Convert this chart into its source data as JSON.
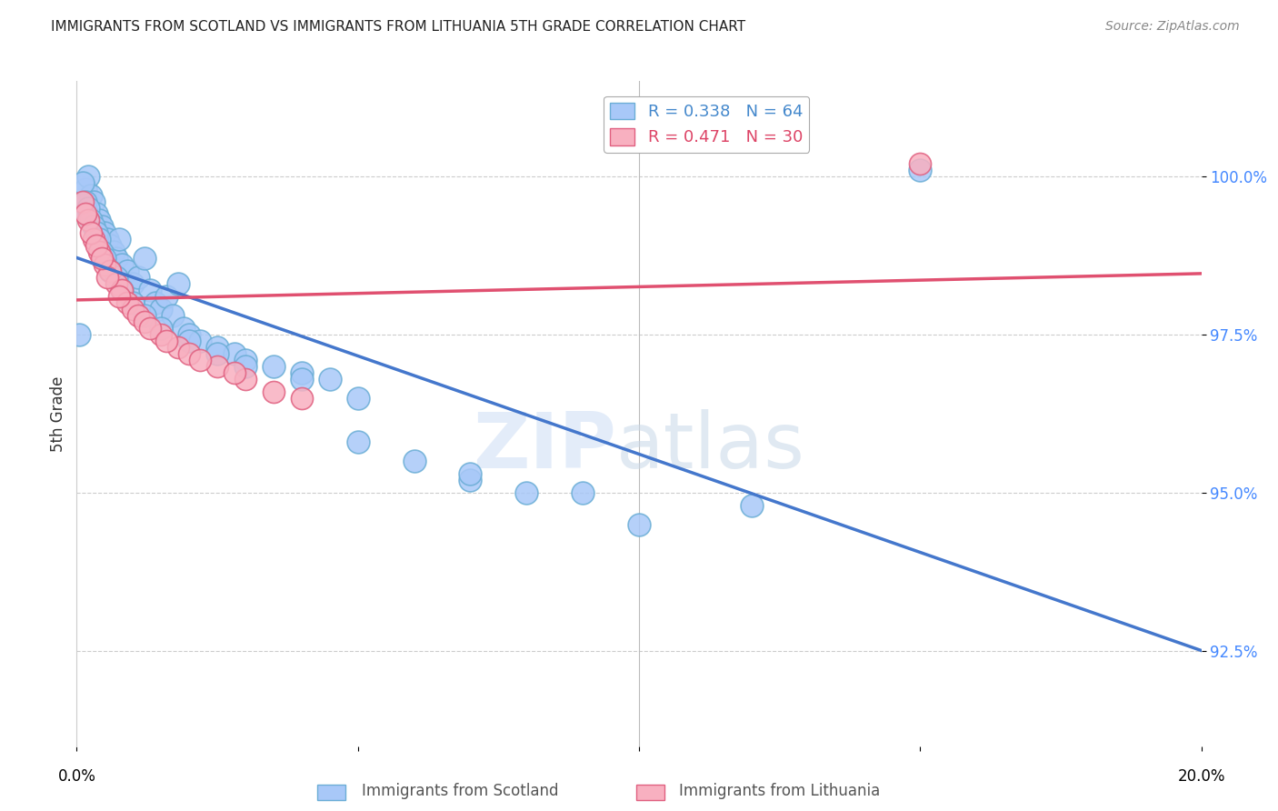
{
  "title": "IMMIGRANTS FROM SCOTLAND VS IMMIGRANTS FROM LITHUANIA 5TH GRADE CORRELATION CHART",
  "source": "Source: ZipAtlas.com",
  "ylabel": "5th Grade",
  "yticks": [
    92.5,
    95.0,
    97.5,
    100.0
  ],
  "ytick_labels": [
    "92.5%",
    "95.0%",
    "97.5%",
    "100.0%"
  ],
  "xlim": [
    0.0,
    20.0
  ],
  "ylim": [
    91.0,
    101.5
  ],
  "scotland_color": "#a8c8f8",
  "scotland_edge": "#6baed6",
  "lithuania_color": "#f8b0c0",
  "lithuania_edge": "#e06080",
  "scotland_R": 0.338,
  "scotland_N": 64,
  "lithuania_R": 0.471,
  "lithuania_N": 30,
  "line_scotland_color": "#4477cc",
  "line_lithuania_color": "#e05070",
  "scotland_x": [
    0.1,
    0.15,
    0.2,
    0.25,
    0.3,
    0.35,
    0.4,
    0.45,
    0.5,
    0.55,
    0.6,
    0.65,
    0.7,
    0.75,
    0.8,
    0.9,
    1.0,
    1.1,
    1.2,
    1.3,
    1.4,
    1.5,
    1.6,
    1.7,
    1.8,
    1.9,
    2.0,
    2.2,
    2.5,
    2.8,
    3.0,
    3.5,
    4.0,
    4.5,
    5.0,
    6.0,
    7.0,
    9.0,
    12.0,
    15.0,
    0.1,
    0.15,
    0.2,
    0.25,
    0.3,
    0.35,
    0.4,
    0.45,
    0.5,
    0.6,
    0.7,
    0.8,
    1.0,
    1.2,
    1.5,
    2.0,
    2.5,
    3.0,
    4.0,
    5.0,
    7.0,
    8.0,
    10.0,
    0.05
  ],
  "scotland_y": [
    99.5,
    99.8,
    100.0,
    99.7,
    99.6,
    99.4,
    99.3,
    99.2,
    99.1,
    99.0,
    98.9,
    98.8,
    98.7,
    99.0,
    98.6,
    98.5,
    98.3,
    98.4,
    98.7,
    98.2,
    98.0,
    97.9,
    98.1,
    97.8,
    98.3,
    97.6,
    97.5,
    97.4,
    97.3,
    97.2,
    97.1,
    97.0,
    96.9,
    96.8,
    96.5,
    95.5,
    95.2,
    95.0,
    94.8,
    100.1,
    99.9,
    99.6,
    99.5,
    99.3,
    99.2,
    99.1,
    99.0,
    98.8,
    98.7,
    98.5,
    98.4,
    98.2,
    98.0,
    97.8,
    97.6,
    97.4,
    97.2,
    97.0,
    96.8,
    95.8,
    95.3,
    95.0,
    94.5,
    97.5
  ],
  "lithuania_x": [
    0.1,
    0.2,
    0.3,
    0.4,
    0.5,
    0.6,
    0.7,
    0.8,
    0.9,
    1.0,
    1.1,
    1.2,
    1.5,
    1.8,
    2.0,
    2.5,
    3.0,
    3.5,
    0.15,
    0.25,
    0.35,
    0.55,
    0.75,
    1.3,
    1.6,
    2.2,
    2.8,
    4.0,
    15.0,
    0.45
  ],
  "lithuania_y": [
    99.6,
    99.3,
    99.0,
    98.8,
    98.6,
    98.5,
    98.3,
    98.2,
    98.0,
    97.9,
    97.8,
    97.7,
    97.5,
    97.3,
    97.2,
    97.0,
    96.8,
    96.6,
    99.4,
    99.1,
    98.9,
    98.4,
    98.1,
    97.6,
    97.4,
    97.1,
    96.9,
    96.5,
    100.2,
    98.7
  ]
}
